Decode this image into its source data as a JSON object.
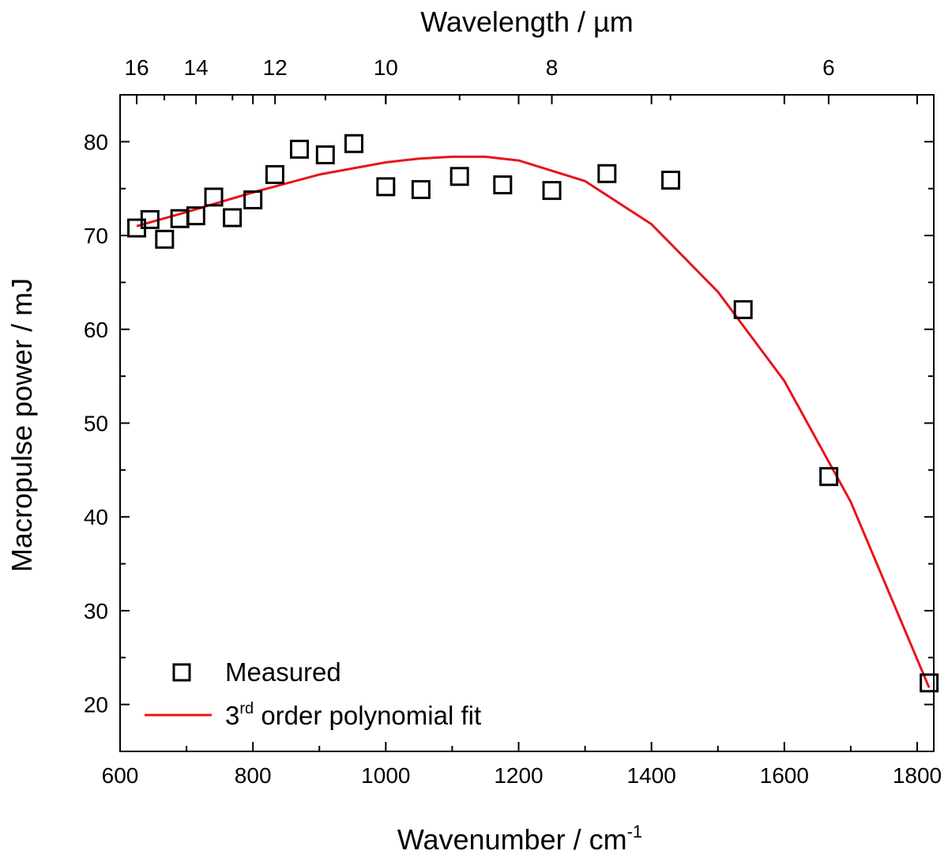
{
  "chart_data": {
    "type": "scatter",
    "xlabel": "Wavenumber / cm",
    "xlabel_sup": "-1",
    "ylabel": "Macropulse power / mJ",
    "top_xlabel": "Wavelength / µm",
    "xlim": [
      600,
      1825
    ],
    "ylim": [
      15,
      85
    ],
    "x_ticks": [
      "600",
      "800",
      "1000",
      "1200",
      "1400",
      "1600",
      "1800"
    ],
    "y_ticks": [
      "20",
      "30",
      "40",
      "50",
      "60",
      "70",
      "80"
    ],
    "top_ticks": [
      {
        "label": "16",
        "wavenumber": 625
      },
      {
        "label": "14",
        "wavenumber": 714.3
      },
      {
        "label": "12",
        "wavenumber": 833.3
      },
      {
        "label": "10",
        "wavenumber": 1000
      },
      {
        "label": "8",
        "wavenumber": 1250
      },
      {
        "label": "6",
        "wavenumber": 1666.7
      }
    ],
    "top_minor_wavelengths": [
      15,
      13,
      11,
      9,
      7
    ],
    "series": [
      {
        "name": "Measured",
        "kind": "scatter",
        "marker": "open-square",
        "color": "#000000",
        "x": [
          625,
          645,
          667,
          690,
          714,
          741,
          769,
          800,
          833,
          870,
          909,
          952,
          1000,
          1053,
          1111,
          1176,
          1250,
          1333,
          1429,
          1538,
          1667,
          1818
        ],
        "y": [
          70.8,
          71.7,
          69.6,
          71.8,
          72.1,
          74.1,
          71.9,
          73.8,
          76.5,
          79.2,
          78.6,
          79.8,
          75.2,
          74.9,
          76.3,
          75.4,
          74.8,
          76.6,
          75.9,
          62.1,
          44.3,
          22.3
        ]
      },
      {
        "name": "3rd order polynomial fit",
        "name_parts": [
          "3",
          "rd",
          " order polynomial fit"
        ],
        "kind": "line",
        "color": "#e8141b",
        "x": [
          625,
          700,
          800,
          900,
          1000,
          1050,
          1100,
          1150,
          1200,
          1300,
          1400,
          1500,
          1600,
          1700,
          1818
        ],
        "y": [
          71.0,
          72.5,
          74.6,
          76.5,
          77.8,
          78.2,
          78.4,
          78.4,
          78.0,
          75.8,
          71.2,
          64.0,
          54.5,
          41.6,
          21.8
        ]
      }
    ],
    "legend": {
      "position": "bottom-left"
    },
    "grid": false
  }
}
